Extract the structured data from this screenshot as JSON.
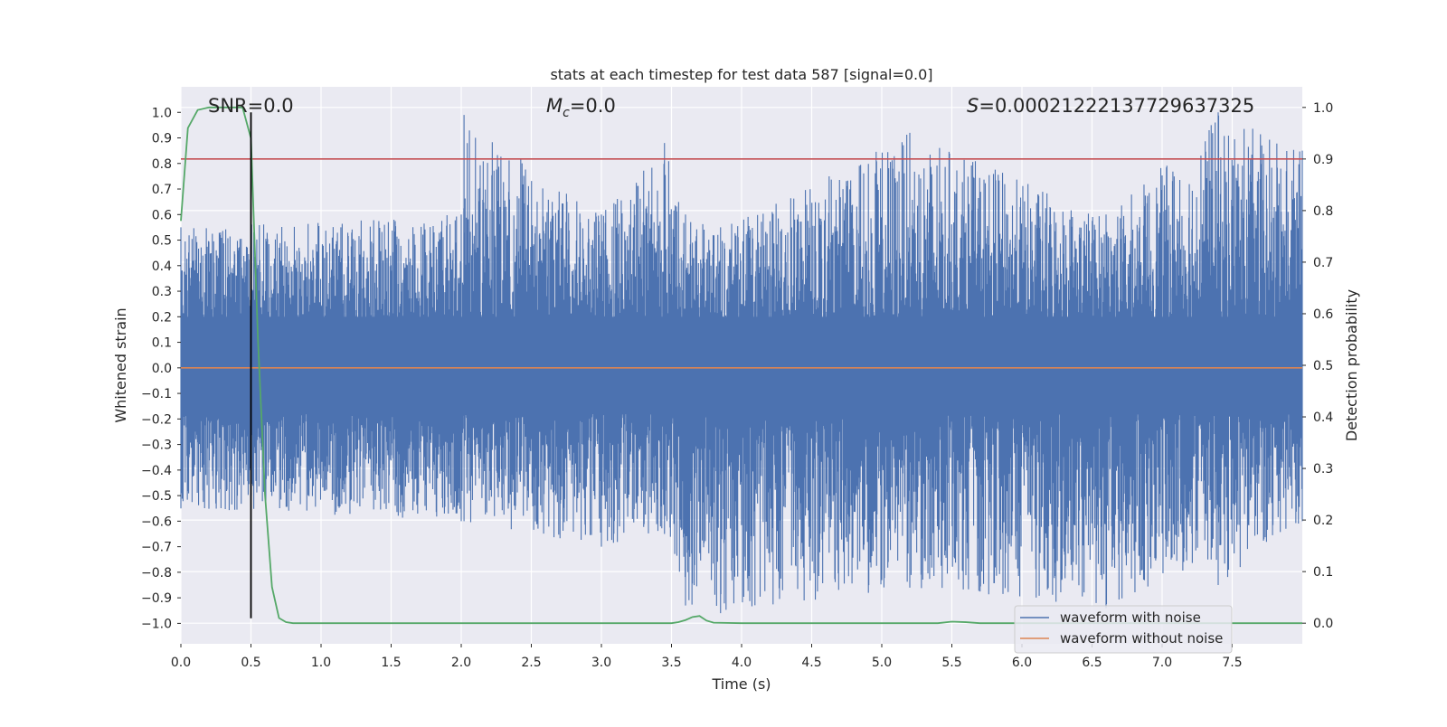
{
  "chart_data": {
    "type": "line",
    "title": "stats at each timestep for test data 587 [signal=0.0]",
    "xlabel": "Time (s)",
    "ylabel_left": "Whitened strain",
    "ylabel_right": "Detection probability",
    "xlim": [
      0.0,
      8.0
    ],
    "ylim_left": [
      -1.08,
      1.1
    ],
    "ylim_right": [
      -0.04,
      1.04
    ],
    "x_ticks": [
      0.0,
      0.5,
      1.0,
      1.5,
      2.0,
      2.5,
      3.0,
      3.5,
      4.0,
      4.5,
      5.0,
      5.5,
      6.0,
      6.5,
      7.0,
      7.5
    ],
    "x_tick_labels": [
      "0.0",
      "0.5",
      "1.0",
      "1.5",
      "2.0",
      "2.5",
      "3.0",
      "3.5",
      "4.0",
      "4.5",
      "5.0",
      "5.5",
      "6.0",
      "6.5",
      "7.0",
      "7.5"
    ],
    "y_left_ticks": [
      1.0,
      0.9,
      0.8,
      0.7,
      0.6,
      0.5,
      0.4,
      0.3,
      0.2,
      0.1,
      0.0,
      -0.1,
      -0.2,
      -0.3,
      -0.4,
      -0.5,
      -0.6,
      -0.7,
      -0.8,
      -0.9,
      -1.0
    ],
    "y_left_tick_labels": [
      "1.0",
      "0.9",
      "0.8",
      "0.7",
      "0.6",
      "0.5",
      "0.4",
      "0.3",
      "0.2",
      "0.1",
      "0.0",
      "−0.1",
      "−0.2",
      "−0.3",
      "−0.4",
      "−0.5",
      "−0.6",
      "−0.7",
      "−0.8",
      "−0.9",
      "−1.0"
    ],
    "y_right_ticks": [
      1.0,
      0.9,
      0.8,
      0.7,
      0.6,
      0.5,
      0.4,
      0.3,
      0.2,
      0.1,
      0.0
    ],
    "y_right_tick_labels": [
      "1.0",
      "0.9",
      "0.8",
      "0.7",
      "0.6",
      "0.5",
      "0.4",
      "0.3",
      "0.2",
      "0.1",
      "0.0"
    ],
    "grid": true,
    "legend_position": "lower right",
    "annotations": {
      "snr": "SNR=0.0",
      "mc_symbol": "M",
      "mc_sub": "c",
      "mc_value": "=0.0",
      "s_symbol": "S",
      "s_value": "=0.00021222137729637325"
    },
    "threshold_right_axis": 0.9,
    "marker_time": 0.5,
    "series": [
      {
        "name": "waveform with noise",
        "color": "#4c72b0",
        "axis": "left",
        "envelope": {
          "x": [
            0.0,
            2.0,
            2.02,
            3.0,
            3.45,
            3.6,
            3.85,
            5.2,
            6.6,
            7.35,
            7.4,
            8.0
          ],
          "max": [
            0.55,
            0.6,
            0.99,
            0.6,
            0.88,
            0.6,
            0.55,
            0.92,
            0.6,
            0.95,
            1.0,
            0.85
          ],
          "min": [
            -0.55,
            -0.6,
            -0.6,
            -0.7,
            -0.65,
            -0.93,
            -0.96,
            -0.86,
            -0.94,
            -0.75,
            -0.85,
            -0.6
          ]
        }
      },
      {
        "name": "waveform without noise",
        "color": "#dd8452",
        "axis": "left",
        "x": [
          0.0,
          8.0
        ],
        "y": [
          0.0,
          0.0
        ]
      },
      {
        "name": "detection probability",
        "color": "#55a868",
        "axis": "right",
        "x": [
          0.0,
          0.05,
          0.12,
          0.2,
          0.3,
          0.35,
          0.44,
          0.5,
          0.55,
          0.6,
          0.65,
          0.7,
          0.75,
          0.8,
          1.0,
          2.0,
          3.0,
          3.5,
          3.55,
          3.6,
          3.65,
          3.7,
          3.75,
          3.8,
          4.0,
          5.0,
          5.4,
          5.5,
          5.6,
          5.7,
          6.0,
          7.0,
          8.0
        ],
        "y": [
          0.78,
          0.96,
          0.995,
          1.0,
          1.0,
          1.0,
          1.0,
          0.94,
          0.55,
          0.25,
          0.07,
          0.01,
          0.002,
          0.0,
          0.0,
          0.0,
          0.0,
          0.0,
          0.002,
          0.006,
          0.012,
          0.014,
          0.005,
          0.001,
          0.0,
          0.0,
          0.0,
          0.003,
          0.002,
          0.0,
          0.0,
          0.0,
          0.0
        ]
      }
    ],
    "threshold_color": "#c44e52",
    "marker_color": "#000000"
  }
}
